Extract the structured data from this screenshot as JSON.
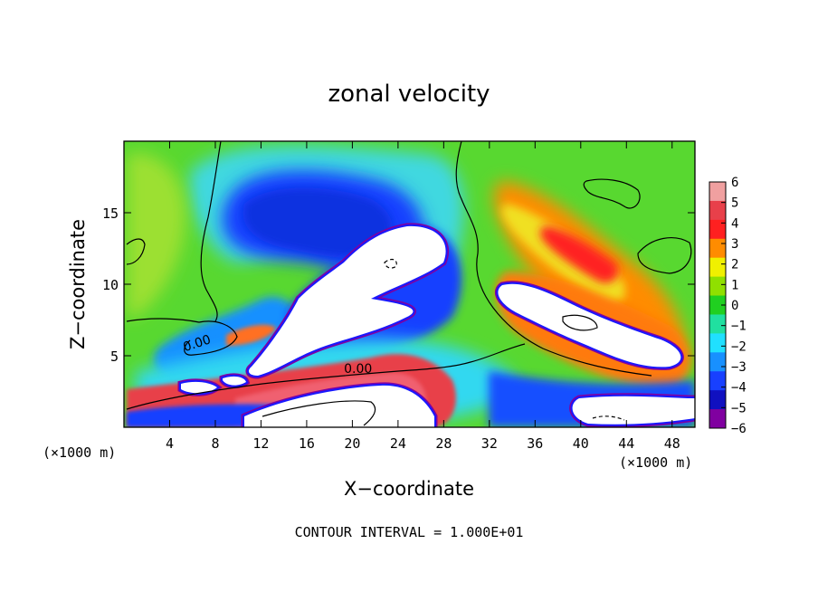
{
  "chart_data": {
    "type": "heatmap",
    "title": "zonal velocity",
    "xlabel": "X−coordinate",
    "ylabel": "Z−coordinate",
    "x_unit_label": "(×1000 m)",
    "footer": "CONTOUR INTERVAL = 1.000E+01",
    "xlim": [
      0,
      50
    ],
    "ylim": [
      0,
      20
    ],
    "x_ticks": [
      4,
      8,
      12,
      16,
      20,
      24,
      28,
      32,
      36,
      40,
      44,
      48
    ],
    "x_tick_labels": [
      "4",
      "8",
      "12",
      "16",
      "20",
      "24",
      "28",
      "32",
      "36",
      "40",
      "44",
      "48"
    ],
    "y_ticks": [
      5,
      10,
      15
    ],
    "y_tick_labels": [
      "5",
      "10",
      "15"
    ],
    "colorbar": {
      "levels": [
        6,
        5,
        4,
        3,
        2,
        1,
        0,
        -1,
        -2,
        -3,
        -4,
        -5,
        -6
      ],
      "labels": [
        "6",
        "5",
        "4",
        "3",
        "2",
        "1",
        "0",
        "−1",
        "−2",
        "−3",
        "−4",
        "−5",
        "−6"
      ],
      "colors": [
        "#f0a0a0",
        "#e8404a",
        "#ff2020",
        "#ff8c00",
        "#f0f000",
        "#90e000",
        "#20d020",
        "#20e0a0",
        "#20e0ff",
        "#1890ff",
        "#1840ff",
        "#1010c0",
        "#8000a0"
      ]
    },
    "contour_labels": [
      {
        "text": "0.00",
        "x": 20.5,
        "y": 3.8
      },
      {
        "text": "0.00",
        "x": 6.5,
        "y": 5.6
      }
    ],
    "over_range_color": "#ffffff",
    "regions": [
      {
        "name": "background",
        "value": 0.8
      },
      {
        "name": "upper-blue-jet",
        "value": -4.2
      },
      {
        "name": "left-blue-arm",
        "value": -3.2
      },
      {
        "name": "mid-blue-ring",
        "value": -3.6
      },
      {
        "name": "right-warm-band",
        "value": 3.2
      },
      {
        "name": "right-core",
        "value": 4.5
      },
      {
        "name": "lower-warm-layer",
        "value": 4.8
      },
      {
        "name": "white-mass-left",
        "value": -7
      },
      {
        "name": "white-mass-right",
        "value": 7
      },
      {
        "name": "white-surface-jet",
        "value": 7
      },
      {
        "name": "bottom-blue-strip",
        "value": -4
      }
    ]
  }
}
